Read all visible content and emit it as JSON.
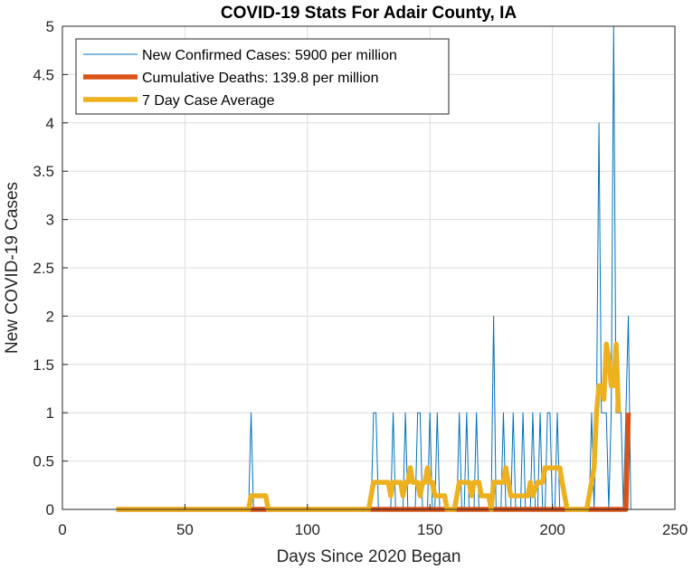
{
  "chart_data": {
    "type": "line",
    "title": "COVID-19 Stats For Adair County, IA",
    "xlabel": "Days Since 2020 Began",
    "ylabel": "New COVID-19 Cases",
    "xlim": [
      0,
      250
    ],
    "ylim": [
      0,
      5
    ],
    "xticks": [
      0,
      50,
      100,
      150,
      200,
      250
    ],
    "yticks": [
      0,
      0.5,
      1,
      1.5,
      2,
      2.5,
      3,
      3.5,
      4,
      4.5,
      5
    ],
    "grid": true,
    "legend_position": "top-left",
    "series": [
      {
        "name": "New Confirmed Cases: 5900 per million",
        "color": "#0072BD",
        "line_width": "thin",
        "points": [
          [
            22,
            0
          ],
          [
            76,
            0
          ],
          [
            77,
            1
          ],
          [
            78,
            0
          ],
          [
            126,
            0
          ],
          [
            127,
            1
          ],
          [
            128,
            1
          ],
          [
            129,
            0
          ],
          [
            134,
            0
          ],
          [
            135,
            1
          ],
          [
            136,
            0
          ],
          [
            139,
            0
          ],
          [
            140,
            1
          ],
          [
            141,
            0
          ],
          [
            144,
            0
          ],
          [
            145,
            1
          ],
          [
            146,
            1
          ],
          [
            147,
            0
          ],
          [
            149,
            0
          ],
          [
            150,
            1
          ],
          [
            151,
            0
          ],
          [
            152,
            0
          ],
          [
            153,
            1
          ],
          [
            154,
            0
          ],
          [
            161,
            0
          ],
          [
            162,
            1
          ],
          [
            163,
            0
          ],
          [
            164,
            0
          ],
          [
            165,
            1
          ],
          [
            166,
            0
          ],
          [
            168,
            0
          ],
          [
            169,
            1
          ],
          [
            170,
            0
          ],
          [
            175,
            0
          ],
          [
            176,
            2
          ],
          [
            177,
            0
          ],
          [
            179,
            0
          ],
          [
            180,
            1
          ],
          [
            181,
            0
          ],
          [
            183,
            0
          ],
          [
            184,
            1
          ],
          [
            185,
            0
          ],
          [
            187,
            0
          ],
          [
            188,
            1
          ],
          [
            189,
            0
          ],
          [
            191,
            0
          ],
          [
            192,
            1
          ],
          [
            193,
            0
          ],
          [
            194,
            0
          ],
          [
            195,
            1
          ],
          [
            196,
            0
          ],
          [
            197,
            0
          ],
          [
            198,
            1
          ],
          [
            199,
            1
          ],
          [
            200,
            0
          ],
          [
            201,
            0
          ],
          [
            202,
            1
          ],
          [
            203,
            0
          ],
          [
            215,
            0
          ],
          [
            216,
            1
          ],
          [
            217,
            0
          ],
          [
            218,
            1
          ],
          [
            219,
            4
          ],
          [
            220,
            1
          ],
          [
            221,
            1
          ],
          [
            222,
            1
          ],
          [
            223,
            0
          ],
          [
            224,
            1
          ],
          [
            225,
            5
          ],
          [
            226,
            1
          ],
          [
            227,
            1
          ],
          [
            228,
            1
          ],
          [
            229,
            0
          ],
          [
            230,
            1
          ],
          [
            231,
            2
          ],
          [
            232,
            0
          ]
        ]
      },
      {
        "name": "Cumulative Deaths: 139.8 per million",
        "color": "#D95319",
        "line_width": "thick",
        "points": [
          [
            22,
            0
          ],
          [
            230,
            0
          ],
          [
            231,
            1
          ]
        ]
      },
      {
        "name": "7 Day Case Average",
        "color": "#EDB120",
        "line_width": "thick",
        "points": [
          [
            22,
            0
          ],
          [
            76,
            0
          ],
          [
            77,
            0.14
          ],
          [
            83,
            0.14
          ],
          [
            84,
            0
          ],
          [
            125,
            0
          ],
          [
            126,
            0.14
          ],
          [
            127,
            0.28
          ],
          [
            133,
            0.28
          ],
          [
            134,
            0.14
          ],
          [
            135,
            0.28
          ],
          [
            138,
            0.28
          ],
          [
            139,
            0.14
          ],
          [
            140,
            0.28
          ],
          [
            141,
            0.28
          ],
          [
            142,
            0.43
          ],
          [
            143,
            0.28
          ],
          [
            144,
            0.28
          ],
          [
            145,
            0.28
          ],
          [
            146,
            0.14
          ],
          [
            147,
            0.28
          ],
          [
            148,
            0.28
          ],
          [
            149,
            0.43
          ],
          [
            150,
            0.28
          ],
          [
            151,
            0.28
          ],
          [
            152,
            0.14
          ],
          [
            156,
            0.14
          ],
          [
            157,
            0
          ],
          [
            160,
            0
          ],
          [
            161,
            0.14
          ],
          [
            162,
            0.28
          ],
          [
            166,
            0.28
          ],
          [
            167,
            0.14
          ],
          [
            168,
            0.28
          ],
          [
            170,
            0.28
          ],
          [
            171,
            0.14
          ],
          [
            174,
            0.14
          ],
          [
            175,
            0
          ],
          [
            176,
            0.28
          ],
          [
            180,
            0.28
          ],
          [
            181,
            0.43
          ],
          [
            182,
            0.28
          ],
          [
            183,
            0.14
          ],
          [
            190,
            0.14
          ],
          [
            191,
            0.28
          ],
          [
            192,
            0.14
          ],
          [
            194,
            0.28
          ],
          [
            196,
            0.28
          ],
          [
            197,
            0.43
          ],
          [
            203,
            0.43
          ],
          [
            204,
            0.28
          ],
          [
            205,
            0.14
          ],
          [
            206,
            0
          ],
          [
            214,
            0
          ],
          [
            215,
            0.14
          ],
          [
            216,
            0.28
          ],
          [
            217,
            0.43
          ],
          [
            218,
            1.0
          ],
          [
            219,
            1.28
          ],
          [
            220,
            1.28
          ],
          [
            221,
            1.14
          ],
          [
            222,
            1.71
          ],
          [
            223,
            1.57
          ],
          [
            224,
            1.28
          ],
          [
            225,
            1.28
          ],
          [
            226,
            1.71
          ],
          [
            227,
            1.0
          ]
        ]
      }
    ]
  }
}
